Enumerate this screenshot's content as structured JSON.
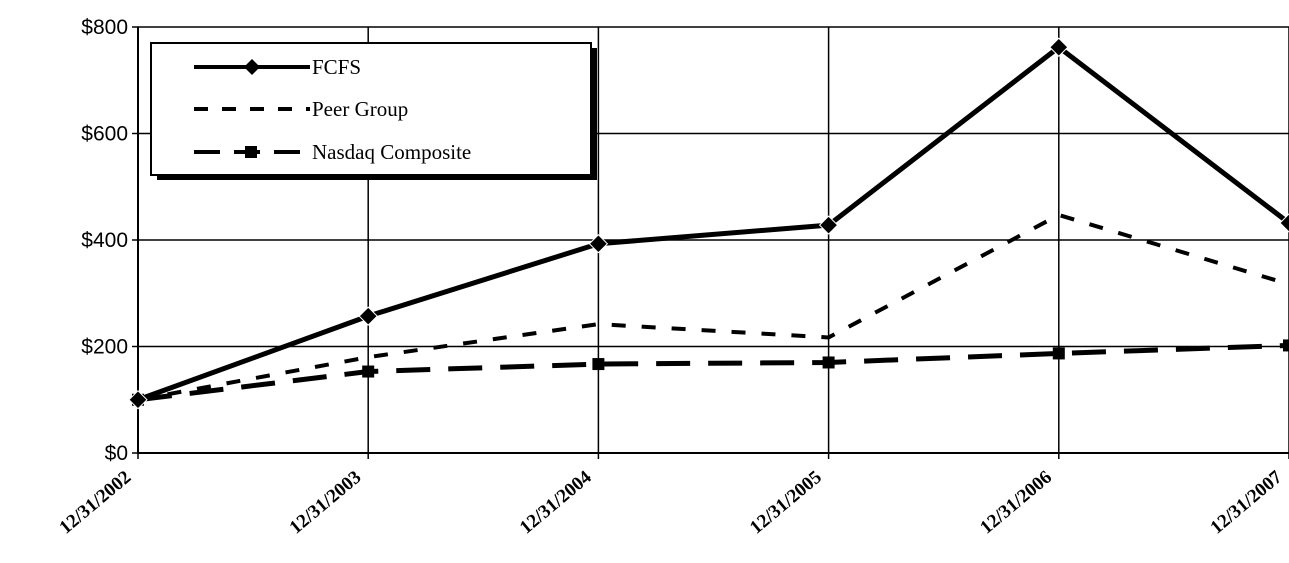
{
  "chart_data": {
    "type": "line",
    "categories": [
      "12/31/2002",
      "12/31/2003",
      "12/31/2004",
      "12/31/2005",
      "12/31/2006",
      "12/31/2007"
    ],
    "y_tick_labels": [
      "$0",
      "$200",
      "$400",
      "$600",
      "$800"
    ],
    "y_tick_values": [
      0,
      200,
      400,
      600,
      800
    ],
    "ylim": [
      0,
      800
    ],
    "grid": true,
    "legend_position": "top-left",
    "series": [
      {
        "name": "FCFS",
        "values": [
          100,
          257,
          393,
          428,
          762,
          432
        ],
        "color": "#000000",
        "style": "solid-diamond"
      },
      {
        "name": "Peer Group",
        "values": [
          100,
          180,
          242,
          217,
          447,
          317
        ],
        "color": "#000000",
        "style": "dotted"
      },
      {
        "name": "Nasdaq Composite",
        "values": [
          100,
          153,
          167,
          170,
          187,
          202
        ],
        "color": "#000000",
        "style": "long-dash-square"
      }
    ]
  }
}
